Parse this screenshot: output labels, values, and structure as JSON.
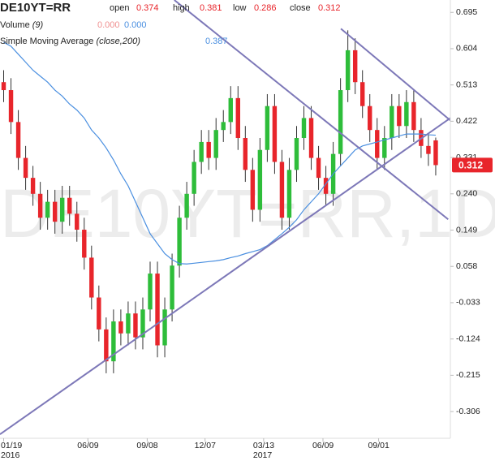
{
  "chart_data": {
    "type": "candlestick",
    "title": "DE10YT=RR",
    "watermark": "DE10YT=RR,1D",
    "ohlc_labels": [
      "open",
      "high",
      "low",
      "close"
    ],
    "open": [
      0.52,
      0.5,
      0.42,
      0.33,
      0.28,
      0.24,
      0.18,
      0.22,
      0.17,
      0.23,
      0.19,
      0.15,
      0.08,
      -0.02,
      -0.1,
      -0.18,
      -0.08,
      -0.11,
      -0.06,
      -0.12,
      -0.05,
      0.04,
      -0.14,
      -0.05,
      0.06,
      0.18,
      0.24,
      0.32,
      0.37,
      0.33,
      0.4,
      0.42,
      0.48,
      0.38,
      0.3,
      0.2,
      0.35,
      0.46,
      0.32,
      0.18,
      0.3,
      0.38,
      0.43,
      0.33,
      0.28,
      0.24,
      0.34,
      0.5,
      0.6,
      0.52,
      0.46,
      0.4,
      0.33,
      0.38,
      0.46,
      0.41,
      0.47,
      0.4,
      0.36,
      0.374
    ],
    "high": [
      0.55,
      0.53,
      0.45,
      0.36,
      0.31,
      0.27,
      0.25,
      0.25,
      0.26,
      0.26,
      0.22,
      0.18,
      0.11,
      0.01,
      -0.07,
      -0.05,
      -0.05,
      -0.03,
      -0.03,
      -0.02,
      0.07,
      0.07,
      -0.02,
      0.09,
      0.21,
      0.27,
      0.35,
      0.4,
      0.4,
      0.43,
      0.45,
      0.51,
      0.51,
      0.41,
      0.33,
      0.38,
      0.49,
      0.49,
      0.35,
      0.33,
      0.41,
      0.46,
      0.46,
      0.36,
      0.31,
      0.37,
      0.53,
      0.65,
      0.63,
      0.55,
      0.49,
      0.43,
      0.41,
      0.49,
      0.49,
      0.5,
      0.5,
      0.43,
      0.39,
      0.381
    ],
    "low": [
      0.47,
      0.39,
      0.3,
      0.25,
      0.21,
      0.15,
      0.15,
      0.14,
      0.14,
      0.16,
      0.12,
      0.05,
      -0.05,
      -0.13,
      -0.21,
      -0.21,
      -0.14,
      -0.14,
      -0.15,
      -0.15,
      -0.08,
      -0.17,
      -0.17,
      -0.08,
      0.03,
      0.15,
      0.21,
      0.29,
      0.3,
      0.3,
      0.37,
      0.39,
      0.35,
      0.27,
      0.17,
      0.17,
      0.32,
      0.29,
      0.15,
      0.15,
      0.27,
      0.35,
      0.3,
      0.25,
      0.21,
      0.21,
      0.31,
      0.47,
      0.49,
      0.43,
      0.37,
      0.3,
      0.3,
      0.35,
      0.38,
      0.38,
      0.37,
      0.33,
      0.31,
      0.286
    ],
    "close": [
      0.5,
      0.42,
      0.33,
      0.28,
      0.24,
      0.18,
      0.22,
      0.17,
      0.23,
      0.19,
      0.15,
      0.08,
      -0.02,
      -0.1,
      -0.18,
      -0.08,
      -0.11,
      -0.06,
      -0.12,
      -0.05,
      0.04,
      -0.14,
      -0.05,
      0.06,
      0.18,
      0.24,
      0.32,
      0.37,
      0.33,
      0.4,
      0.42,
      0.48,
      0.38,
      0.3,
      0.2,
      0.35,
      0.46,
      0.32,
      0.18,
      0.3,
      0.38,
      0.43,
      0.33,
      0.28,
      0.24,
      0.34,
      0.5,
      0.6,
      0.52,
      0.46,
      0.4,
      0.33,
      0.38,
      0.46,
      0.41,
      0.47,
      0.4,
      0.36,
      0.34,
      0.312
    ],
    "up_color": "#2ebd3a",
    "down_color": "#e8252b",
    "xlim": [
      -0.5,
      61
    ],
    "xticks": [
      {
        "value": 0,
        "label": "01/19"
      },
      {
        "value": 11.5,
        "label": "06/09"
      },
      {
        "value": 19.6,
        "label": "09/08"
      },
      {
        "value": 27.5,
        "label": "12/07"
      },
      {
        "value": 35.5,
        "label": "03/13"
      },
      {
        "value": 43.6,
        "label": "06/09"
      },
      {
        "value": 51.2,
        "label": "09/01"
      }
    ],
    "year_labels": [
      {
        "value": 0,
        "label": "2016"
      },
      {
        "value": 35.5,
        "label": "2017"
      }
    ],
    "ylim": [
      -0.373,
      0.726
    ],
    "yticks": [
      0.695,
      0.604,
      0.513,
      0.422,
      0.331,
      {
        "value": 0.24,
        "label": "0.240"
      },
      0.149,
      0.058,
      -0.033,
      -0.124,
      -0.215,
      -0.306
    ],
    "sma": {
      "name": "Simple Moving Average",
      "params": "(close,200)",
      "color": "#4a8fe0",
      "values": [
        0.62,
        0.61,
        0.59,
        0.57,
        0.55,
        0.535,
        0.52,
        0.5,
        0.485,
        0.465,
        0.45,
        0.43,
        0.4,
        0.38,
        0.355,
        0.325,
        0.29,
        0.26,
        0.22,
        0.18,
        0.14,
        0.115,
        0.09,
        0.075,
        0.065,
        0.064,
        0.066,
        0.068,
        0.07,
        0.072,
        0.075,
        0.08,
        0.084,
        0.09,
        0.095,
        0.1,
        0.11,
        0.125,
        0.14,
        0.156,
        0.175,
        0.2,
        0.22,
        0.24,
        0.265,
        0.29,
        0.31,
        0.33,
        0.35,
        0.36,
        0.365,
        0.37,
        0.375,
        0.38,
        0.385,
        0.39,
        0.39,
        0.39,
        0.388,
        0.387
      ]
    },
    "volume": {
      "name": "Volume",
      "params": "(9)",
      "value_labels": [
        "0.000",
        "0.000"
      ],
      "colors": [
        "#f09090",
        "#4a8fe0"
      ]
    },
    "trend_lines": [
      {
        "color": "#7d78b8",
        "x": [
          -0.5,
          61
        ],
        "y": [
          -0.363,
          0.43
        ]
      },
      {
        "color": "#7d78b8",
        "x": [
          23.3,
          60.7
        ],
        "y": [
          0.726,
          0.176
        ]
      },
      {
        "color": "#7d78b8",
        "x": [
          46.05,
          61
        ],
        "y": [
          0.654,
          0.424
        ]
      }
    ]
  }
}
